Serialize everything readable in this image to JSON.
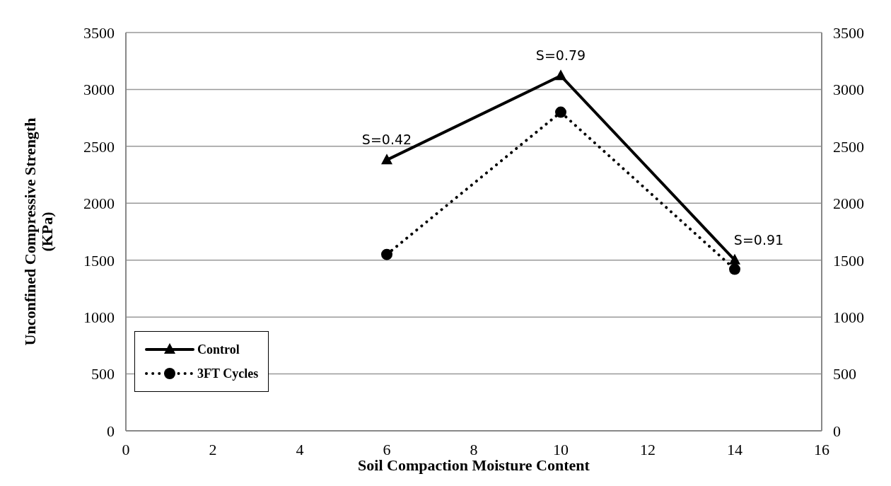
{
  "chart_data": {
    "type": "line",
    "xlabel": "Soil Compaction Moisture Content",
    "ylabel": "Unconfined Compressive Strength (KPa)",
    "x": [
      6,
      10,
      14
    ],
    "series": [
      {
        "name": "Control",
        "color": "#000000",
        "values": [
          2380,
          3120,
          1500
        ],
        "marker": "triangle",
        "line_style": "solid"
      },
      {
        "name": "3FT Cycles",
        "color": "#000000",
        "values": [
          1550,
          2800,
          1420
        ],
        "marker": "circle",
        "line_style": "dotted"
      }
    ],
    "xlim": [
      0,
      16
    ],
    "xticks": [
      0,
      2,
      4,
      6,
      8,
      10,
      12,
      14,
      16
    ],
    "ylim": [
      0,
      3500
    ],
    "yticks": [
      0,
      500,
      1000,
      1500,
      2000,
      2500,
      3000,
      3500
    ],
    "y2lim": [
      0,
      3500
    ],
    "y2ticks": [
      0,
      500,
      1000,
      1500,
      2000,
      2500,
      3000,
      3500
    ],
    "annotations": [
      {
        "text": "S=0.42",
        "x": 6,
        "y": 2380
      },
      {
        "text": "S=0.79",
        "x": 10,
        "y": 3120
      },
      {
        "text": "S=0.91",
        "x": 14,
        "y": 1500
      }
    ],
    "grid": "y",
    "legend": "bottom left"
  }
}
